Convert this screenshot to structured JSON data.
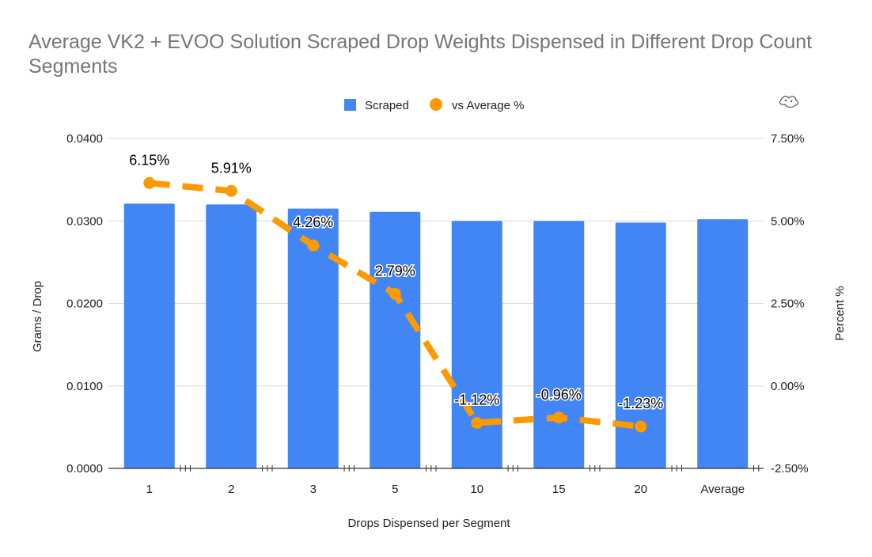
{
  "chart_data": {
    "type": "bar",
    "title": "Average VK2 + EVOO Solution Scraped Drop Weights Dispensed in Different Drop Count Segments",
    "xlabel": "Drops Dispensed per Segment",
    "ylabel": "Grams / Drop",
    "y2label": "Percent %",
    "categories": [
      "1",
      "2",
      "3",
      "5",
      "10",
      "15",
      "20",
      "Average"
    ],
    "ylim": [
      0,
      0.04
    ],
    "y2lim": [
      -2.5,
      7.5
    ],
    "y_ticks": [
      "0.0000",
      "0.0100",
      "0.0200",
      "0.0300",
      "0.0400"
    ],
    "y2_ticks": [
      "-2.50%",
      "0.00%",
      "2.50%",
      "5.00%",
      "7.50%"
    ],
    "legend_position": "top",
    "grid": true,
    "series": [
      {
        "name": "Scraped",
        "type": "bar",
        "axis": "left",
        "color": "#4285f4",
        "values": [
          0.0321,
          0.032,
          0.0315,
          0.0311,
          0.03,
          0.03,
          0.0298,
          0.0302
        ]
      },
      {
        "name": "vs Average %",
        "type": "line",
        "style": "dashed",
        "axis": "right",
        "color": "#ff9900",
        "values": [
          6.15,
          5.91,
          4.26,
          2.79,
          -1.12,
          -0.96,
          -1.23,
          null
        ],
        "labels": [
          "6.15%",
          "5.91%",
          "4.26%",
          "2.79%",
          "-1.12%",
          "-0.96%",
          "-1.23%",
          ""
        ]
      }
    ]
  }
}
